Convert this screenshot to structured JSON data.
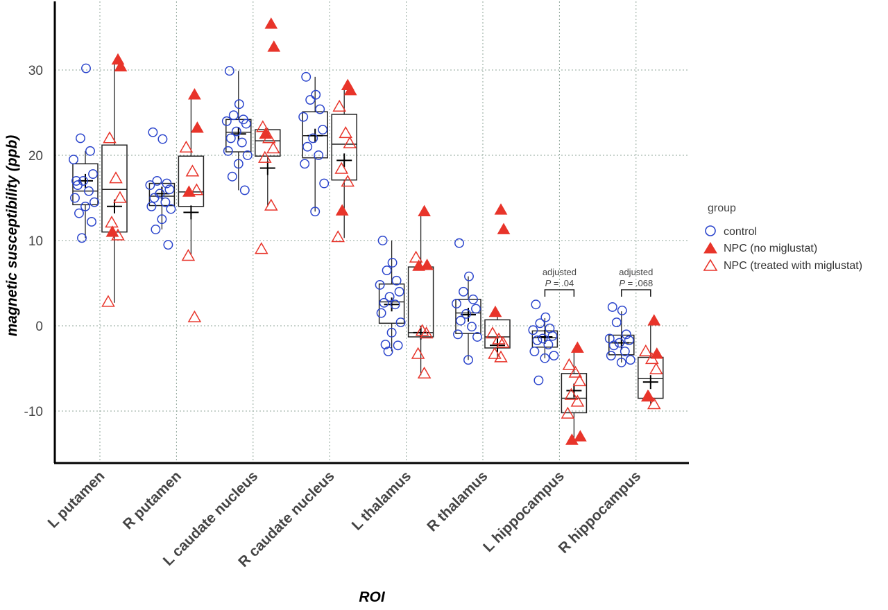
{
  "chart_data": {
    "type": "boxplot",
    "xlabel": "ROI",
    "ylabel": "magnetic susceptibility (ppb)",
    "categories": [
      "L putamen",
      "R putamen",
      "L caudate nucleus",
      "R caudate nucleus",
      "L thalamus",
      "R thalamus",
      "L hippocampus",
      "R hippocampus"
    ],
    "yticks": [
      -10,
      0,
      10,
      20,
      30
    ],
    "ylim": [
      -16,
      38
    ],
    "grid": true,
    "legend": {
      "title": "group",
      "position": "right",
      "items": [
        {
          "label": "control",
          "marker": "open-circle",
          "color": "#2a44cc"
        },
        {
          "label": "NPC (no miglustat)",
          "marker": "filled-triangle",
          "color": "#e8342a"
        },
        {
          "label": "NPC (treated with miglustat)",
          "marker": "open-triangle",
          "color": "#e8342a"
        }
      ]
    },
    "groups": [
      {
        "category": "L putamen",
        "box": "control",
        "q1": 14.2,
        "median": 15.8,
        "q3": 19.0,
        "whisker_low": 10.3,
        "whisker_high": 20.5,
        "mean": 17.0
      },
      {
        "category": "L putamen",
        "box": "NPC",
        "q1": 11.0,
        "median": 16.0,
        "q3": 21.2,
        "whisker_low": 2.7,
        "whisker_high": 31.2,
        "mean": 14.0
      },
      {
        "category": "R putamen",
        "box": "control",
        "q1": 14.1,
        "median": 15.2,
        "q3": 16.7,
        "whisker_low": 11.3,
        "whisker_high": 16.8,
        "mean": 15.5
      },
      {
        "category": "R putamen",
        "box": "NPC",
        "q1": 14.0,
        "median": 15.7,
        "q3": 19.9,
        "whisker_low": 8.3,
        "whisker_high": 27.0,
        "mean": 13.3
      },
      {
        "category": "L caudate nucleus",
        "box": "control",
        "q1": 20.4,
        "median": 22.7,
        "q3": 24.2,
        "whisker_low": 15.9,
        "whisker_high": 29.9,
        "mean": 22.5
      },
      {
        "category": "L caudate nucleus",
        "box": "NPC",
        "q1": 19.9,
        "median": 21.7,
        "q3": 23.0,
        "whisker_low": 14.1,
        "whisker_high": 23.2,
        "mean": 18.5
      },
      {
        "category": "R caudate nucleus",
        "box": "control",
        "q1": 19.7,
        "median": 22.3,
        "q3": 25.1,
        "whisker_low": 13.4,
        "whisker_high": 29.2,
        "mean": 22.3
      },
      {
        "category": "R caudate nucleus",
        "box": "NPC",
        "q1": 17.1,
        "median": 21.3,
        "q3": 24.8,
        "whisker_low": 10.3,
        "whisker_high": 28.2,
        "mean": 19.4
      },
      {
        "category": "L thalamus",
        "box": "control",
        "q1": 0.3,
        "median": 2.8,
        "q3": 4.9,
        "whisker_low": -3.0,
        "whisker_high": 10.0,
        "mean": 2.5
      },
      {
        "category": "L thalamus",
        "box": "NPC",
        "q1": -1.3,
        "median": -0.8,
        "q3": 6.9,
        "whisker_low": -5.8,
        "whisker_high": 13.3,
        "mean": -0.8
      },
      {
        "category": "R thalamus",
        "box": "control",
        "q1": -0.9,
        "median": 1.5,
        "q3": 3.1,
        "whisker_low": -4.0,
        "whisker_high": 5.8,
        "mean": 1.3
      },
      {
        "category": "R thalamus",
        "box": "NPC",
        "q1": -2.6,
        "median": -1.3,
        "q3": 0.7,
        "whisker_low": -3.9,
        "whisker_high": 1.4,
        "mean": -2.3
      },
      {
        "category": "L hippocampus",
        "box": "control",
        "q1": -2.5,
        "median": -1.4,
        "q3": -0.6,
        "whisker_low": -3.8,
        "whisker_high": 0.9,
        "mean": -1.3
      },
      {
        "category": "L hippocampus",
        "box": "NPC",
        "q1": -10.2,
        "median": -8.5,
        "q3": -5.6,
        "whisker_low": -13.4,
        "whisker_high": -2.6,
        "mean": -7.6
      },
      {
        "category": "R hippocampus",
        "box": "control",
        "q1": -3.4,
        "median": -2.0,
        "q3": -1.1,
        "whisker_low": -4.3,
        "whisker_high": 1.7,
        "mean": -2.0
      },
      {
        "category": "R hippocampus",
        "box": "NPC",
        "q1": -8.5,
        "median": -6.2,
        "q3": -3.7,
        "whisker_low": -9.3,
        "whisker_high": 0.5,
        "mean": -6.6
      }
    ],
    "points": {
      "control": [
        [
          17.0,
          30.2,
          22.0,
          20.5,
          19.5,
          17.8,
          17.0,
          16.5,
          15.8,
          15.0,
          14.5,
          14.0,
          13.2,
          12.2,
          10.3
        ],
        [
          22.7,
          21.9,
          17.0,
          16.7,
          16.5,
          16.0,
          15.5,
          15.0,
          14.5,
          14.0,
          13.7,
          12.5,
          11.3,
          9.5
        ],
        [
          29.9,
          26.0,
          24.7,
          24.2,
          24.0,
          23.7,
          22.8,
          22.0,
          21.5,
          20.5,
          20.0,
          19.0,
          17.5,
          15.9
        ],
        [
          29.2,
          27.1,
          26.5,
          25.4,
          24.5,
          23.0,
          22.0,
          21.0,
          20.0,
          19.0,
          16.7,
          13.4
        ],
        [
          10.0,
          7.4,
          6.5,
          5.3,
          4.8,
          4.0,
          3.4,
          2.7,
          2.5,
          1.5,
          0.4,
          -0.8,
          -2.2,
          -2.3,
          -3.0
        ],
        [
          9.7,
          5.8,
          4.0,
          3.1,
          2.6,
          2.0,
          1.4,
          0.6,
          -0.1,
          -1.0,
          -1.3,
          -4.0
        ],
        [
          2.5,
          1.0,
          0.3,
          -0.3,
          -0.5,
          -1.2,
          -1.5,
          -1.7,
          -2.2,
          -3.0,
          -3.5,
          -3.8,
          -6.4
        ],
        [
          2.2,
          1.8,
          0.4,
          -1.0,
          -1.5,
          -1.7,
          -2.0,
          -2.3,
          -3.0,
          -3.5,
          -4.0,
          -4.3
        ]
      ],
      "npc_no_miglustat": [
        [
          31.2,
          30.4,
          11.0
        ],
        [
          27.1,
          23.2,
          15.7
        ],
        [
          35.4,
          32.7,
          22.5
        ],
        [
          28.2,
          27.6,
          13.5
        ],
        [
          13.4,
          7.1,
          7.0
        ],
        [
          13.6,
          11.3,
          1.6
        ],
        [
          -2.6,
          -13.0,
          -13.4
        ],
        [
          0.6,
          -3.3,
          -8.3
        ]
      ],
      "npc_treated": [
        [
          22.0,
          17.3,
          15.0,
          12.1,
          10.6,
          2.8
        ],
        [
          20.9,
          18.1,
          15.9,
          8.2,
          1.0
        ],
        [
          23.3,
          22.0,
          20.8,
          19.7,
          14.1,
          9.0
        ],
        [
          25.7,
          22.6,
          21.4,
          18.4,
          16.9,
          10.4
        ],
        [
          8.0,
          -0.6,
          -0.9,
          -3.3,
          -5.6
        ],
        [
          -0.9,
          -1.6,
          -2.0,
          -3.3,
          -3.7
        ],
        [
          -4.6,
          -5.5,
          -6.5,
          -8.1,
          -8.9,
          -10.3
        ],
        [
          -3.0,
          -3.9,
          -5.1,
          -8.3,
          -9.2
        ]
      ]
    },
    "annotations": [
      {
        "category": "L hippocampus",
        "line1": "adjusted",
        "p_label": "P",
        "p_value": " = .04"
      },
      {
        "category": "R hippocampus",
        "line1": "adjusted",
        "p_label": "P",
        "p_value": " = .068"
      }
    ],
    "colors": {
      "control": "#2a44cc",
      "npc": "#e8342a",
      "grid": "#8fa69a",
      "box": "#222222",
      "mean_marker": "#000000"
    }
  }
}
